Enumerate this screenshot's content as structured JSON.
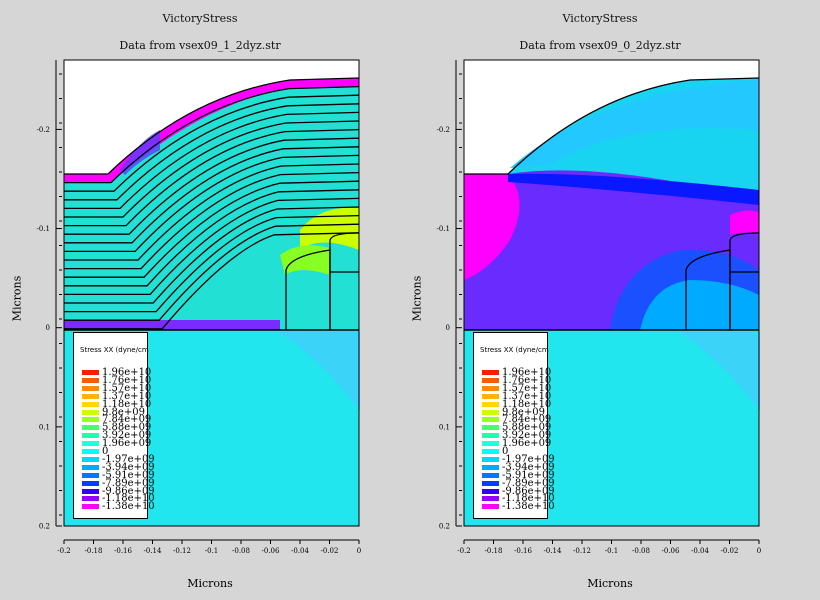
{
  "chart_data": [
    {
      "type": "heatmap",
      "title": "VictoryStress",
      "subtitle": "Data from vsex09_1_2dyz.str",
      "xlabel": "Microns",
      "ylabel": "Microns",
      "xlim": [
        -0.2,
        0
      ],
      "ylim": [
        -0.27,
        0.2
      ],
      "x_ticks": [
        "-0.2",
        "-0.18",
        "-0.16",
        "-0.14",
        "-0.12",
        "-0.1",
        "-0.08",
        "-0.06",
        "-0.04",
        "-0.02",
        "0"
      ],
      "y_ticks": [
        "-0.2",
        "-0.1",
        "0",
        "0.1",
        "0.2"
      ],
      "legend_title": "Stress XX (dyne/cm",
      "legend_labels": [
        "1.96e+10",
        "1.76e+10",
        "1.57e+10",
        "1.37e+10",
        "1.18e+10",
        "9.8e+09",
        "7.84e+09",
        "5.88e+09",
        "3.92e+09",
        "1.96e+09",
        "0",
        "-1.97e+09",
        "-3.94e+09",
        "-5.91e+09",
        "-7.89e+09",
        "-9.86e+09",
        "-1.18e+10",
        "-1.38e+10"
      ]
    },
    {
      "type": "heatmap",
      "title": "VictoryStress",
      "subtitle": "Data from vsex09_0_2dyz.str",
      "xlabel": "Microns",
      "ylabel": "Microns",
      "xlim": [
        -0.2,
        0
      ],
      "ylim": [
        -0.27,
        0.2
      ],
      "x_ticks": [
        "-0.2",
        "-0.18",
        "-0.16",
        "-0.14",
        "-0.12",
        "-0.1",
        "-0.08",
        "-0.06",
        "-0.04",
        "-0.02",
        "0"
      ],
      "y_ticks": [
        "-0.2",
        "-0.1",
        "0",
        "0.1",
        "0.2"
      ],
      "legend_title": "Stress XX (dyne/cm",
      "legend_labels": [
        "1.96e+10",
        "1.76e+10",
        "1.57e+10",
        "1.37e+10",
        "1.18e+10",
        "9.8e+09",
        "7.84e+09",
        "5.88e+09",
        "3.92e+09",
        "1.96e+09",
        "0",
        "-1.97e+09",
        "-3.94e+09",
        "-5.91e+09",
        "-7.89e+09",
        "-9.86e+09",
        "-1.18e+10",
        "-1.38e+10"
      ]
    }
  ],
  "colors": {
    "legend": [
      "#ff1a00",
      "#ff5a00",
      "#ff8c00",
      "#ffb400",
      "#ffd800",
      "#ccff00",
      "#99ff22",
      "#44ff66",
      "#22ffaa",
      "#22ffdd",
      "#00ffff",
      "#00d8ff",
      "#00aaff",
      "#0077ff",
      "#0040ff",
      "#3300ff",
      "#9900ff",
      "#ff00ff"
    ],
    "background": "#d6d6d6",
    "substrate": "#00ffff"
  }
}
